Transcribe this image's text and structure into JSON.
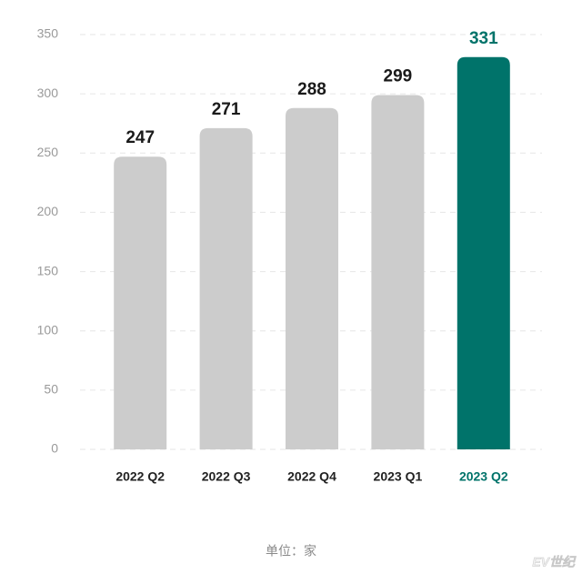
{
  "chart_data": {
    "type": "bar",
    "categories": [
      "2022 Q2",
      "2022 Q3",
      "2022 Q4",
      "2023 Q1",
      "2023 Q2"
    ],
    "values": [
      247,
      271,
      288,
      299,
      331
    ],
    "colors": [
      "#cccccc",
      "#cccccc",
      "#cccccc",
      "#cccccc",
      "#00736a"
    ],
    "ylim": [
      0,
      350
    ],
    "yticks": [
      0,
      50,
      100,
      150,
      200,
      250,
      300,
      350
    ],
    "grid": true,
    "note": "单位：家",
    "watermark": "EV世纪"
  }
}
